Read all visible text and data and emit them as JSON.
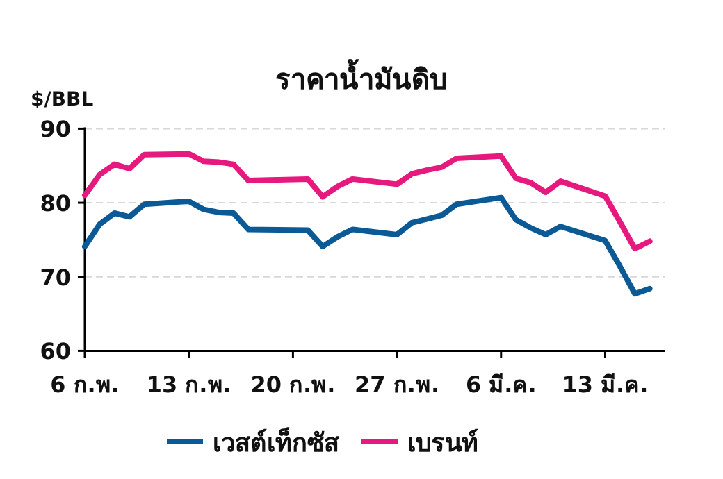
{
  "chart_data": {
    "type": "line",
    "title": "ราคาน้ำมันดิบ",
    "ylabel": "$/BBL",
    "x": [
      "--02-06",
      "--02-07",
      "--02-08",
      "--02-09",
      "--02-10",
      "--02-13",
      "--02-14",
      "--02-15",
      "--02-16",
      "--02-17",
      "--02-21",
      "--02-22",
      "--02-23",
      "--02-24",
      "--02-27",
      "--02-28",
      "--03-01",
      "--03-02",
      "--03-03",
      "--03-06",
      "--03-07",
      "--03-08",
      "--03-09",
      "--03-10",
      "--03-13",
      "--03-14",
      "--03-15",
      "--03-16"
    ],
    "series": [
      {
        "name": "เวสต์เท็กซัส",
        "color": "#0b5a96",
        "values": [
          74.1,
          77.1,
          78.6,
          78.1,
          79.8,
          80.2,
          79.1,
          78.7,
          78.6,
          76.4,
          76.3,
          74.1,
          75.4,
          76.4,
          75.7,
          77.3,
          77.8,
          78.3,
          79.8,
          80.7,
          77.7,
          76.6,
          75.7,
          76.8,
          74.9,
          71.4,
          67.7,
          68.4
        ]
      },
      {
        "name": "เบรนท์",
        "color": "#e6197f",
        "values": [
          81.0,
          83.8,
          85.2,
          84.6,
          86.5,
          86.6,
          85.6,
          85.5,
          85.2,
          83.0,
          83.2,
          80.8,
          82.2,
          83.2,
          82.5,
          83.9,
          84.4,
          84.8,
          86.0,
          86.3,
          83.3,
          82.7,
          81.4,
          82.9,
          80.9,
          77.4,
          73.8,
          74.8
        ]
      }
    ],
    "xlim": [
      "--02-06",
      "--03-17"
    ],
    "xticks": [
      {
        "value": "--02-06",
        "label": "6 ก.พ."
      },
      {
        "value": "--02-13",
        "label": "13 ก.พ."
      },
      {
        "value": "--02-20",
        "label": "20 ก.พ."
      },
      {
        "value": "--02-27",
        "label": "27 ก.พ."
      },
      {
        "value": "--03-06",
        "label": "6 มี.ค."
      },
      {
        "value": "--03-13",
        "label": "13 มี.ค."
      }
    ],
    "ylim": [
      60,
      90
    ],
    "yticks": [
      60,
      70,
      80,
      90
    ],
    "grid": "y",
    "legend": "bottom",
    "marker": "none",
    "line_style": "solid"
  }
}
